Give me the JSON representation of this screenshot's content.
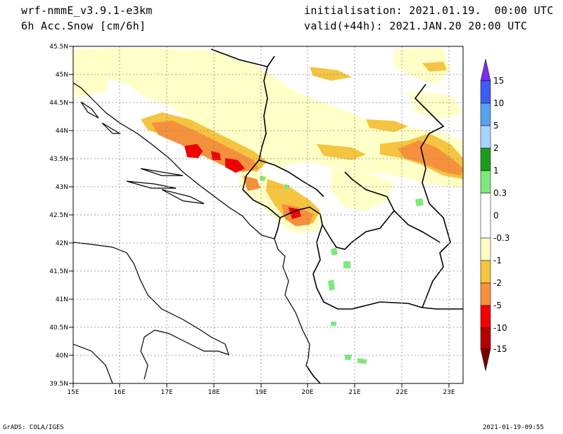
{
  "header": {
    "model": "wrf-nmmE_v3.9.1-e3km",
    "field": "6h Acc.Snow [cm/6h]",
    "init": "initialisation: 2021.01.19.  00:00 UTC",
    "valid": "valid(+44h): 2021.JAN.20 20:00 UTC"
  },
  "map": {
    "lon_range": [
      15,
      23.3
    ],
    "lat_range": [
      39.5,
      45.5
    ],
    "lon_ticks": [
      "15E",
      "16E",
      "17E",
      "18E",
      "19E",
      "20E",
      "21E",
      "22E",
      "23E"
    ],
    "lat_ticks": [
      "45.5N",
      "45N",
      "44.5N",
      "44N",
      "43.5N",
      "43N",
      "42.5N",
      "42N",
      "41.5N",
      "41N",
      "40.5N",
      "40N",
      "39.5N"
    ],
    "regions": [
      {
        "name": "snow-band-north",
        "level": "light"
      },
      {
        "name": "dinaric-band",
        "level": "heavy"
      },
      {
        "name": "montenegro-core",
        "level": "heavy"
      },
      {
        "name": "bulgaria-band",
        "level": "moderate"
      },
      {
        "name": "melt-patches",
        "level": "negative"
      }
    ]
  },
  "colorbar": {
    "labels": [
      "15",
      "10",
      "5",
      "2",
      "1",
      "0.3",
      "0",
      "-0.3",
      "-1",
      "-2",
      "-5",
      "-10",
      "-15"
    ],
    "colors": [
      "#7b2df0",
      "#3d5cf5",
      "#5aa0f0",
      "#a8d5ff",
      "#1e9b1e",
      "#7ee87e",
      "#ffffff",
      "#ffffc8",
      "#f5c440",
      "#f5913c",
      "#f00000",
      "#b40000",
      "#780000"
    ]
  },
  "footer": {
    "left": "GrADS: COLA/IGES",
    "right": "2021-01-19-09:55"
  }
}
